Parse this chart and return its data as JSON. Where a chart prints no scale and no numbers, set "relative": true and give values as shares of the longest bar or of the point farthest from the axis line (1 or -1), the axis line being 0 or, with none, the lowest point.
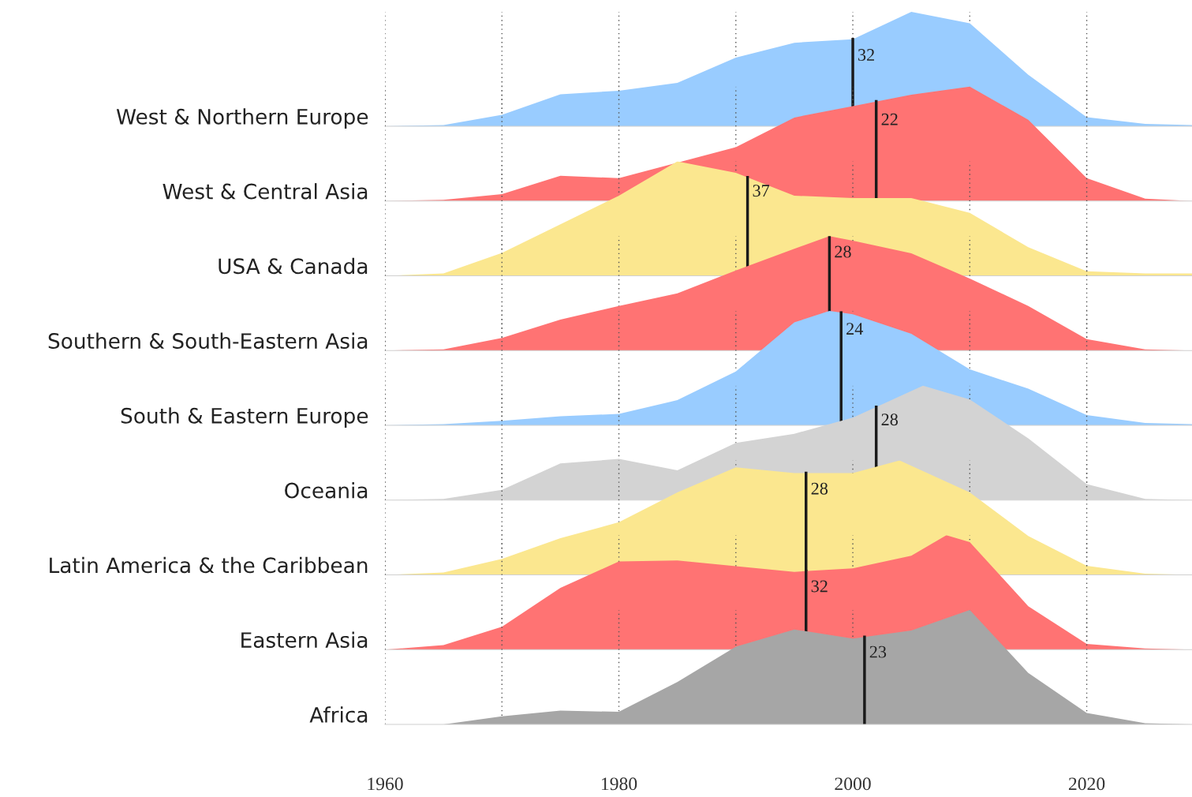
{
  "chart_data": [
    {
      "type": "area",
      "ylabel": "West & Northern Europe",
      "color": "#99ccff",
      "relative": true,
      "x": [
        1960,
        1965,
        1970,
        1975,
        1980,
        1985,
        1990,
        1995,
        2000,
        2005,
        2010,
        2015,
        2020,
        2025,
        2029
      ],
      "values": [
        0,
        0.01,
        0.1,
        0.28,
        0.31,
        0.38,
        0.6,
        0.73,
        0.76,
        1,
        0.9,
        0.45,
        0.08,
        0.02,
        0.01
      ],
      "xlim": [
        1960,
        2029
      ],
      "xticks": [
        1960,
        {
          "value": 1970,
          "label": null
        },
        1980,
        {
          "value": 1990,
          "label": null
        },
        2000,
        {
          "value": 2010,
          "label": null
        },
        2020
      ],
      "grid": "x",
      "tick_labels": false,
      "ref_lines": [
        {
          "axis": "x",
          "value": 2000,
          "color": "#1a1a1a"
        }
      ],
      "annotations": [
        {
          "text": "32",
          "x": 2000,
          "y": 0.76
        }
      ]
    },
    {
      "type": "area",
      "ylabel": "West & Central Asia",
      "color": "#ff7373",
      "relative": true,
      "x": [
        1960,
        1965,
        1970,
        1975,
        1980,
        1990,
        1995,
        2000,
        2005,
        2010,
        2015,
        2020,
        2025,
        2029
      ],
      "values": [
        0,
        0.01,
        0.06,
        0.22,
        0.2,
        0.47,
        0.73,
        0.83,
        0.93,
        1,
        0.71,
        0.2,
        0.02,
        0
      ],
      "xlim": [
        1960,
        2029
      ],
      "xticks": [
        1960,
        {
          "value": 1970,
          "label": null
        },
        1980,
        {
          "value": 1990,
          "label": null
        },
        2000,
        {
          "value": 2010,
          "label": null
        },
        2020
      ],
      "grid": "x",
      "tick_labels": false,
      "ref_lines": [
        {
          "axis": "x",
          "value": 2002,
          "color": "#1a1a1a"
        }
      ],
      "annotations": [
        {
          "text": "22",
          "x": 2002,
          "y": 0.85
        }
      ]
    },
    {
      "type": "area",
      "ylabel": "USA & Canada",
      "color": "#fbe78f",
      "relative": true,
      "x": [
        1960,
        1965,
        1970,
        1975,
        1980,
        1985,
        1990,
        1995,
        2000,
        2005,
        2010,
        2015,
        2020,
        2025,
        2029
      ],
      "values": [
        0,
        0.02,
        0.2,
        0.45,
        0.7,
        1,
        0.9,
        0.7,
        0.68,
        0.68,
        0.55,
        0.25,
        0.04,
        0.02,
        0.02
      ],
      "xlim": [
        1960,
        2029
      ],
      "xticks": [
        1960,
        {
          "value": 1970,
          "label": null
        },
        1980,
        {
          "value": 1990,
          "label": null
        },
        2000,
        {
          "value": 2010,
          "label": null
        },
        2020
      ],
      "grid": "x",
      "tick_labels": false,
      "ref_lines": [
        {
          "axis": "x",
          "value": 1991,
          "color": "#1a1a1a"
        }
      ],
      "annotations": [
        {
          "text": "37",
          "x": 1991,
          "y": 0.88
        }
      ]
    },
    {
      "type": "area",
      "ylabel": "Southern & South-Eastern Asia",
      "color": "#ff7373",
      "relative": true,
      "x": [
        1960,
        1965,
        1970,
        1975,
        1980,
        1985,
        1990,
        1995,
        1998,
        2000,
        2005,
        2010,
        2015,
        2020,
        2025,
        2029
      ],
      "values": [
        0,
        0.01,
        0.11,
        0.27,
        0.39,
        0.5,
        0.7,
        0.89,
        1,
        0.96,
        0.85,
        0.63,
        0.39,
        0.1,
        0.01,
        0
      ],
      "xlim": [
        1960,
        2029
      ],
      "xticks": [
        1960,
        {
          "value": 1970,
          "label": null
        },
        1980,
        {
          "value": 1990,
          "label": null
        },
        2000,
        {
          "value": 2010,
          "label": null
        },
        2020
      ],
      "grid": "x",
      "tick_labels": false,
      "ref_lines": [
        {
          "axis": "x",
          "value": 1998,
          "color": "#1a1a1a"
        }
      ],
      "annotations": [
        {
          "text": "28",
          "x": 1998,
          "y": 1
        }
      ]
    },
    {
      "type": "area",
      "ylabel": "South & Eastern Europe",
      "color": "#99ccff",
      "relative": true,
      "x": [
        1960,
        1965,
        1970,
        1975,
        1980,
        1985,
        1990,
        1995,
        1998,
        2000,
        2005,
        2010,
        2015,
        2020,
        2025,
        2029
      ],
      "values": [
        0,
        0.01,
        0.04,
        0.08,
        0.1,
        0.22,
        0.47,
        0.9,
        1,
        0.97,
        0.8,
        0.49,
        0.32,
        0.09,
        0.02,
        0.01
      ],
      "xlim": [
        1960,
        2029
      ],
      "xticks": [
        1960,
        {
          "value": 1970,
          "label": null
        },
        1980,
        {
          "value": 1990,
          "label": null
        },
        2000,
        {
          "value": 2010,
          "label": null
        },
        2020
      ],
      "grid": "x",
      "tick_labels": false,
      "ref_lines": [
        {
          "axis": "x",
          "value": 1999,
          "color": "#1a1a1a"
        }
      ],
      "annotations": [
        {
          "text": "24",
          "x": 1999,
          "y": 0.98
        }
      ]
    },
    {
      "type": "area",
      "ylabel": "Oceania",
      "color": "#d3d3d3",
      "relative": true,
      "x": [
        1960,
        1965,
        1970,
        1975,
        1980,
        1985,
        1990,
        1995,
        2000,
        2006,
        2010,
        2015,
        2020,
        2025,
        2029
      ],
      "values": [
        0,
        0.01,
        0.09,
        0.32,
        0.36,
        0.26,
        0.5,
        0.58,
        0.72,
        1,
        0.88,
        0.54,
        0.14,
        0.01,
        0
      ],
      "xlim": [
        1960,
        2029
      ],
      "xticks": [
        1960,
        {
          "value": 1970,
          "label": null
        },
        1980,
        {
          "value": 1990,
          "label": null
        },
        2000,
        {
          "value": 2010,
          "label": null
        },
        2020
      ],
      "grid": "x",
      "tick_labels": false,
      "ref_lines": [
        {
          "axis": "x",
          "value": 2002,
          "color": "#1a1a1a"
        }
      ],
      "annotations": [
        {
          "text": "28",
          "x": 2002,
          "y": 0.84
        }
      ]
    },
    {
      "type": "area",
      "ylabel": "Latin America & the Caribbean",
      "color": "#fbe78f",
      "relative": true,
      "x": [
        1960,
        1965,
        1970,
        1975,
        1980,
        1985,
        1990,
        1995,
        2000,
        2004,
        2010,
        2015,
        2020,
        2025,
        2029
      ],
      "values": [
        0,
        0.02,
        0.14,
        0.32,
        0.46,
        0.72,
        0.94,
        0.89,
        0.89,
        1,
        0.72,
        0.34,
        0.08,
        0.01,
        0
      ],
      "xlim": [
        1960,
        2029
      ],
      "xticks": [
        1960,
        {
          "value": 1970,
          "label": null
        },
        1980,
        {
          "value": 1990,
          "label": null
        },
        2000,
        {
          "value": 2010,
          "label": null
        },
        2020
      ],
      "grid": "x",
      "tick_labels": false,
      "ref_lines": [
        {
          "axis": "x",
          "value": 1996,
          "color": "#1a1a1a"
        }
      ],
      "annotations": [
        {
          "text": "28",
          "x": 1996,
          "y": 0.89
        }
      ]
    },
    {
      "type": "area",
      "ylabel": "Eastern Asia",
      "color": "#ff7373",
      "relative": true,
      "x": [
        1960,
        1965,
        1970,
        1975,
        1980,
        1985,
        1990,
        1995,
        2000,
        2005,
        2008,
        2010,
        2015,
        2020,
        2025,
        2029
      ],
      "values": [
        0,
        0.04,
        0.2,
        0.54,
        0.77,
        0.78,
        0.73,
        0.68,
        0.71,
        0.82,
        1,
        0.94,
        0.38,
        0.05,
        0.01,
        0
      ],
      "xlim": [
        1960,
        2029
      ],
      "xticks": [
        1960,
        {
          "value": 1970,
          "label": null
        },
        1980,
        {
          "value": 1990,
          "label": null
        },
        2000,
        {
          "value": 2010,
          "label": null
        },
        2020
      ],
      "grid": "x",
      "tick_labels": false,
      "ref_lines": [
        {
          "axis": "x",
          "value": 1996,
          "color": "#1a1a1a"
        }
      ],
      "annotations": [
        {
          "text": "32",
          "x": 1996,
          "y": 0.69
        }
      ]
    },
    {
      "type": "area",
      "ylabel": "Africa",
      "color": "#a6a6a6",
      "relative": true,
      "x": [
        1960,
        1965,
        1970,
        1975,
        1980,
        1985,
        1990,
        1995,
        2000,
        2005,
        2010,
        2015,
        2020,
        2025,
        2029
      ],
      "values": [
        0,
        0,
        0.07,
        0.12,
        0.11,
        0.37,
        0.68,
        0.83,
        0.75,
        0.82,
        1,
        0.45,
        0.1,
        0.01,
        0
      ],
      "xlim": [
        1960,
        2029
      ],
      "xticks": [
        1960,
        {
          "value": 1970,
          "label": null
        },
        1980,
        {
          "value": 1990,
          "label": null
        },
        2000,
        {
          "value": 2010,
          "label": null
        },
        2020
      ],
      "grid": "x",
      "tick_labels": "x",
      "ref_lines": [
        {
          "axis": "x",
          "value": 2001,
          "color": "#1a1a1a"
        }
      ],
      "annotations": [
        {
          "text": "23",
          "x": 2001,
          "y": 0.77
        }
      ]
    }
  ]
}
